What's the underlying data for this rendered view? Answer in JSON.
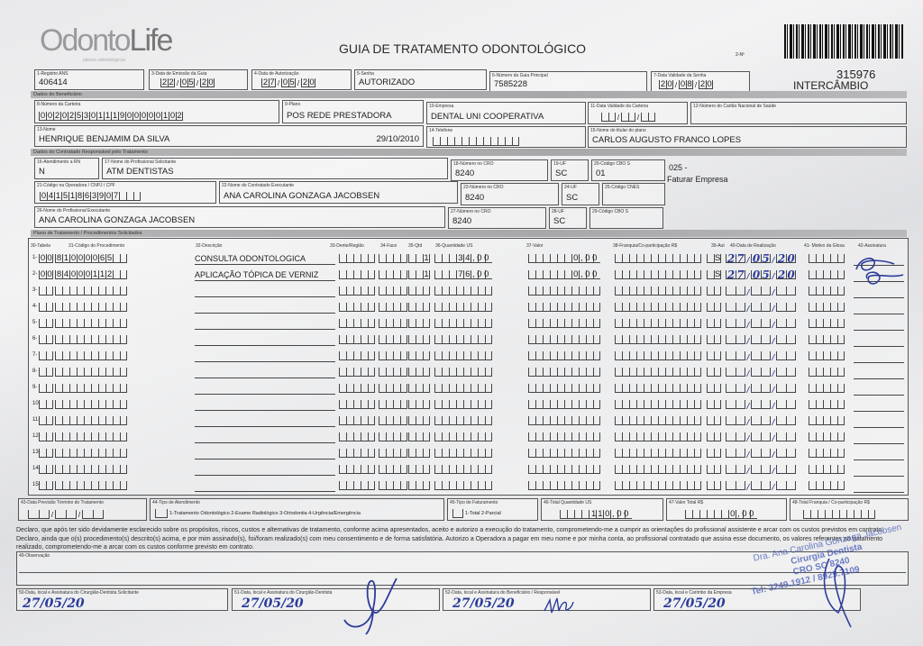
{
  "header": {
    "logo": "OdontoLife",
    "logo_tagline": "planos odontológicos",
    "title": "GUIA DE TRATAMENTO ODONTOLÓGICO",
    "guide_number_label": "2-Nº",
    "guide_number": "315976",
    "type": "INTERCÂMBIO"
  },
  "fields": {
    "f1": {
      "label": "1-Registro ANS",
      "value": "406414"
    },
    "f3": {
      "label": "3-Data de Emissão da Guia",
      "value": [
        "22",
        "05",
        "20"
      ]
    },
    "f4": {
      "label": "4-Data de Autorização",
      "value": [
        "27",
        "05",
        "20"
      ]
    },
    "f5": {
      "label": "5-Senha",
      "value": "AUTORIZADO"
    },
    "f6": {
      "label": "6-Número da Guia Principal",
      "value": "7585228"
    },
    "f7": {
      "label": "7-Data Validade da Senha",
      "value": [
        "20",
        "08",
        "20"
      ]
    },
    "f8": {
      "label": "8-Número da Carteira",
      "value": "00202530111900000102"
    },
    "f9": {
      "label": "9-Plano",
      "value": "POS REDE PRESTADORA"
    },
    "f10": {
      "label": "10-Empresa",
      "value": "DENTAL UNI  COOPERATIVA"
    },
    "f11": {
      "label": "11-Data Validade da Carteira",
      "value": [
        "  ",
        "  ",
        "  "
      ]
    },
    "f12": {
      "label": "12-Número do Cartão Nacional de Saúde",
      "value": ""
    },
    "f13": {
      "label": "13-Nome",
      "value": "HENRIQUE BENJAMIM DA SILVA",
      "birth": "29/10/2010"
    },
    "f14": {
      "label": "14-Telefone",
      "value": ""
    },
    "f15": {
      "label": "15-Nome do titular do plano",
      "value": "CARLOS AUGUSTO FRANCO LOPES"
    },
    "f16": {
      "label": "16-Atendimento a RN",
      "value": "N"
    },
    "f17": {
      "label": "17-Nome do Profissional Solicitante",
      "value": "ATM DENTISTAS"
    },
    "f18": {
      "label": "18-Número no CRO",
      "value": "8240"
    },
    "f19": {
      "label": "19-UF",
      "value": "SC"
    },
    "f20": {
      "label": "20-Código CBO S",
      "value": "01"
    },
    "f20_note": {
      "line1": "025 -",
      "line2": "Faturar Empresa"
    },
    "f21": {
      "label": "21-Código na Operadora / CNPJ / CPF",
      "value": "04151863907   "
    },
    "f22": {
      "label": "22-Nome do Contratado Executante",
      "value": "ANA CAROLINA GONZAGA JACOBSEN"
    },
    "f23": {
      "label": "23-Número no CRO",
      "value": "8240"
    },
    "f24": {
      "label": "24-UF",
      "value": "SC"
    },
    "f25": {
      "label": "25-Código CNES",
      "value": ""
    },
    "f26": {
      "label": "26-Nome do Profissional Executante",
      "value": "ANA CAROLINA GONZAGA JACOBSEN"
    },
    "f27": {
      "label": "27-Número no CRO",
      "value": "8240"
    },
    "f28": {
      "label": "28-UF",
      "value": "SC"
    },
    "f29": {
      "label": "29-Código CBO S",
      "value": ""
    }
  },
  "sections": {
    "beneficiario": "Dados do Beneficiário",
    "contratado": "Dados do Contratado Responsável pelo Tratamento",
    "plano": "Plano de Tratamento / Procedimentos Solicitados"
  },
  "table": {
    "headers": [
      "30-Tabela",
      "31-Código do Procedimento",
      "32-Descrição",
      "33-Dente/Região",
      "34-Face",
      "35-Qtd",
      "36-Quantidade US",
      "37-Valor",
      "38-Franquia/Co-participação R$",
      "39-Aut",
      "40-Data de Realização",
      "41- Motivo da Glosa",
      "42-Assinatura"
    ],
    "rows": [
      {
        "n": "1",
        "tabela": "00",
        "codigo": "81000065",
        "descricao": "CONSULTA ODONTOLOGICA",
        "qtd": "1",
        "us": "34,00",
        "valor": "0,00",
        "aut": "S",
        "data": [
          "27",
          "05",
          "20"
        ]
      },
      {
        "n": "2",
        "tabela": "00",
        "codigo": "84000112",
        "descricao": "APLICAÇÃO TÓPICA DE VERNIZ",
        "qtd": "1",
        "us": "76,00",
        "valor": "0,00",
        "aut": "S",
        "data": [
          "27",
          "05",
          "20"
        ]
      },
      {
        "n": "3"
      },
      {
        "n": "4"
      },
      {
        "n": "5"
      },
      {
        "n": "6"
      },
      {
        "n": "7"
      },
      {
        "n": "8"
      },
      {
        "n": "9"
      },
      {
        "n": "10"
      },
      {
        "n": "11"
      },
      {
        "n": "12"
      },
      {
        "n": "13"
      },
      {
        "n": "14"
      },
      {
        "n": "15"
      }
    ]
  },
  "footer": {
    "f43": {
      "label": "43-Data Previsão Término do Tratamento"
    },
    "f44": {
      "label": "44-Tipo de Atendimento",
      "options": "1-Tratamento Odontológico  2-Exame Radiológico  3-Ortodontia  4-Urgência/Emergência"
    },
    "f45": {
      "label": "45-Tipo de Faturamento",
      "options": "1-Total  2-Parcial"
    },
    "f46": {
      "label": "46-Total Quantidade US",
      "value": "110,00"
    },
    "f47": {
      "label": "47-Valor Total R$",
      "value": "0,00"
    },
    "f48": {
      "label": "48-Total Franquia / Co-participação R$"
    },
    "declaration": "Declaro, que após ter sido devidamente esclarecido sobre os propósitos, riscos, custos e alternativas de tratamento, conforme acima apresentados, aceito e autorizo a execução do tratamento, comprometendo-me a cumprir as orientações do profissional assistente e arcar com os custos previstos em contrato. Declaro, ainda que o(s) procedimento(s) descrito(s) acima, e por mim assinado(s), foi/foram realizado(s) com meu consentimento e de forma satisfatória. Autorizo a Operadora a pagar em meu nome e por minha conta, ao profissional contratado que assina esse documento, os valores referentes ao tratamento realizado, comprometendo-me a arcar com os custos conforme previsto em contrato.",
    "f49": {
      "label": "49-Observação"
    },
    "f50": {
      "label": "50-Data, local e Assinatura do Cirurgião-Dentista Solicitante",
      "date": "27/05/20"
    },
    "f51": {
      "label": "51-Data, local e Assinatura do Cirurgião-Dentista",
      "date": "27/05/20"
    },
    "f52": {
      "label": "52-Data, local e Assinatura do Beneficiário / Responsável",
      "date": "27/05/20"
    },
    "f53": {
      "label": "53-Data, local e Carimbo da Empresa",
      "date": "27/05/20"
    }
  },
  "stamp": {
    "line1": "Dra. Ana Carolina Gonzaga Jacobsen",
    "line2": "Cirurgiã Dentista",
    "line3": "CRO SC 8240",
    "line4": "Tel: 3249.1912 / 8929.7109"
  },
  "colors": {
    "ink": "#2c3c9a",
    "stamp": "#3f55b5",
    "section_bar": "#b0b0b2"
  }
}
